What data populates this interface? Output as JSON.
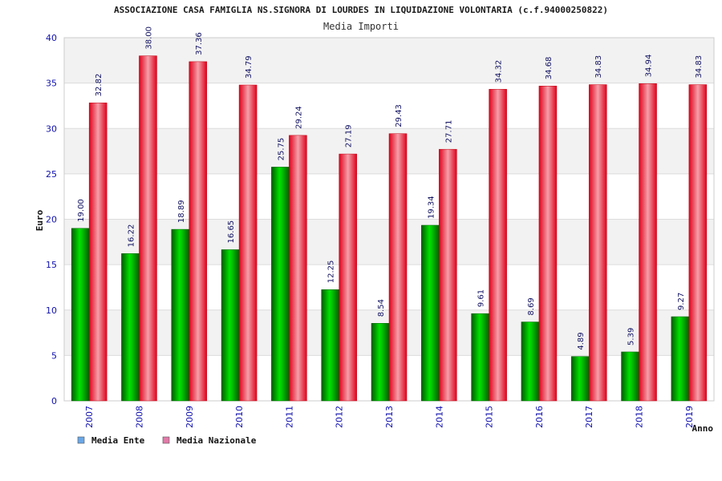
{
  "chart_data": {
    "type": "bar",
    "title": "ASSOCIAZIONE CASA FAMIGLIA NS.SIGNORA DI LOURDES IN LIQUIDAZIONE VOLONTARIA (c.f.94000250822)",
    "subtitle": "Media Importi",
    "xlabel": "Anno",
    "ylabel": "Euro",
    "ylim": [
      0,
      40
    ],
    "yticks": [
      "0",
      "5",
      "10",
      "15",
      "20",
      "25",
      "30",
      "35",
      "40"
    ],
    "grid": true,
    "legend_position": "bottom-left",
    "categories": [
      "2007",
      "2008",
      "2009",
      "2010",
      "2011",
      "2012",
      "2013",
      "2014",
      "2015",
      "2016",
      "2017",
      "2018",
      "2019"
    ],
    "series": [
      {
        "name": "Media Ente",
        "color": "#00b000",
        "legend_color": "#6aa8e8",
        "values": [
          19.0,
          16.22,
          18.89,
          16.65,
          25.75,
          12.25,
          8.54,
          19.34,
          9.61,
          8.69,
          4.89,
          5.39,
          9.27
        ],
        "labels": [
          "19.00",
          "16.22",
          "18.89",
          "16.65",
          "25.75",
          "12.25",
          "8.54",
          "19.34",
          "9.61",
          "8.69",
          "4.89",
          "5.39",
          "9.27"
        ]
      },
      {
        "name": "Media Nazionale",
        "color": "#e8001c",
        "legend_color": "#e27aa8",
        "values": [
          32.82,
          38.0,
          37.36,
          34.79,
          29.24,
          27.19,
          29.43,
          27.71,
          34.32,
          34.68,
          34.83,
          34.94,
          34.83
        ],
        "labels": [
          "32.82",
          "38.00",
          "37.36",
          "34.79",
          "29.24",
          "27.19",
          "29.43",
          "27.71",
          "34.32",
          "34.68",
          "34.83",
          "34.94",
          "34.83"
        ]
      }
    ]
  }
}
